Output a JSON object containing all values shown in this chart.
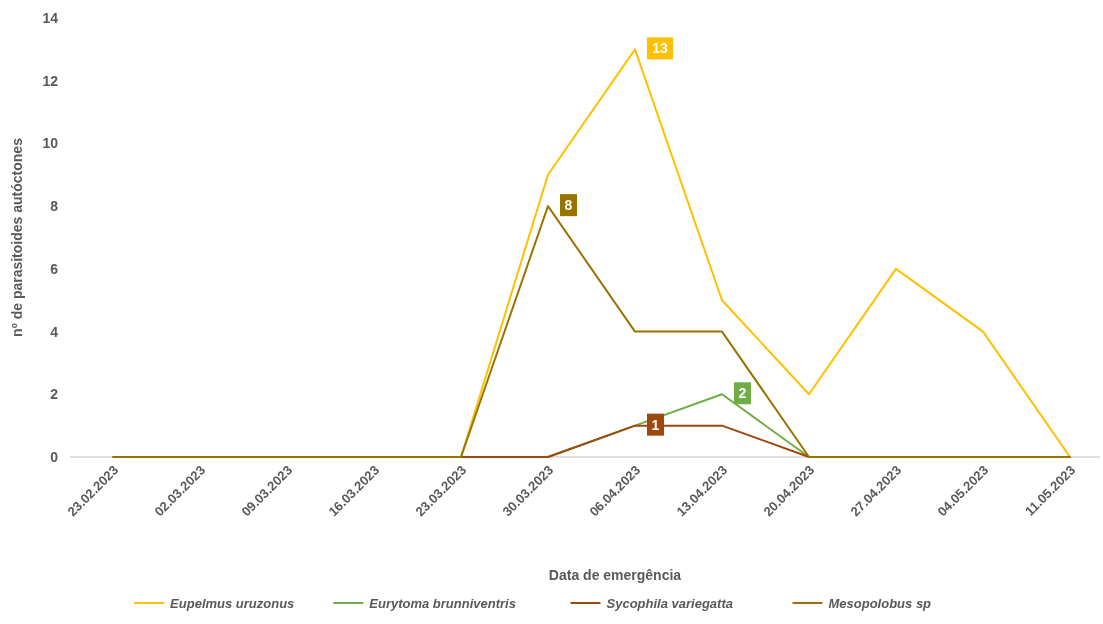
{
  "chart_data": {
    "type": "line",
    "xlabel": "Data de emergência",
    "ylabel": "nº de parasitoides autóctones",
    "categories": [
      "23.02.2023",
      "02.03.2023",
      "09.03.2023",
      "16.03.2023",
      "23.03.2023",
      "30.03.2023",
      "06.04.2023",
      "13.04.2023",
      "20.04.2023",
      "27.04.2023",
      "04.05.2023",
      "11.05.2023"
    ],
    "series": [
      {
        "name": "Eupelmus uruzonus",
        "color": "#ffc000",
        "values": [
          null,
          null,
          null,
          null,
          0,
          9,
          13,
          5,
          2,
          6,
          4,
          0
        ],
        "value_labels": [
          null,
          null,
          null,
          null,
          null,
          null,
          "13",
          null,
          null,
          null,
          null,
          null
        ]
      },
      {
        "name": "Eurytoma brunniventris",
        "color": "#70ad47",
        "values": [
          null,
          null,
          null,
          null,
          null,
          0,
          1,
          2,
          0,
          null,
          null,
          null
        ],
        "value_labels": [
          null,
          null,
          null,
          null,
          null,
          null,
          null,
          "2",
          null,
          null,
          null,
          null
        ]
      },
      {
        "name": "Sycophila variegatta",
        "color": "#9e480e",
        "values": [
          null,
          null,
          null,
          null,
          0,
          0,
          1,
          1,
          0,
          null,
          null,
          null
        ],
        "value_labels": [
          null,
          null,
          null,
          null,
          null,
          null,
          "1",
          null,
          null,
          null,
          null,
          null
        ]
      },
      {
        "name": "Mesopolobus sp",
        "color": "#997300",
        "values": [
          0,
          0,
          0,
          0,
          0,
          8,
          4,
          4,
          0,
          0,
          0,
          0
        ],
        "value_labels": [
          null,
          null,
          null,
          null,
          null,
          "8",
          null,
          null,
          null,
          null,
          null,
          null
        ]
      }
    ],
    "ylim": [
      0,
      14
    ],
    "yticks": [
      0,
      2,
      4,
      6,
      8,
      10,
      12,
      14
    ],
    "grid": false,
    "legend": "bottom",
    "marker": "none",
    "line_style": "solid"
  }
}
